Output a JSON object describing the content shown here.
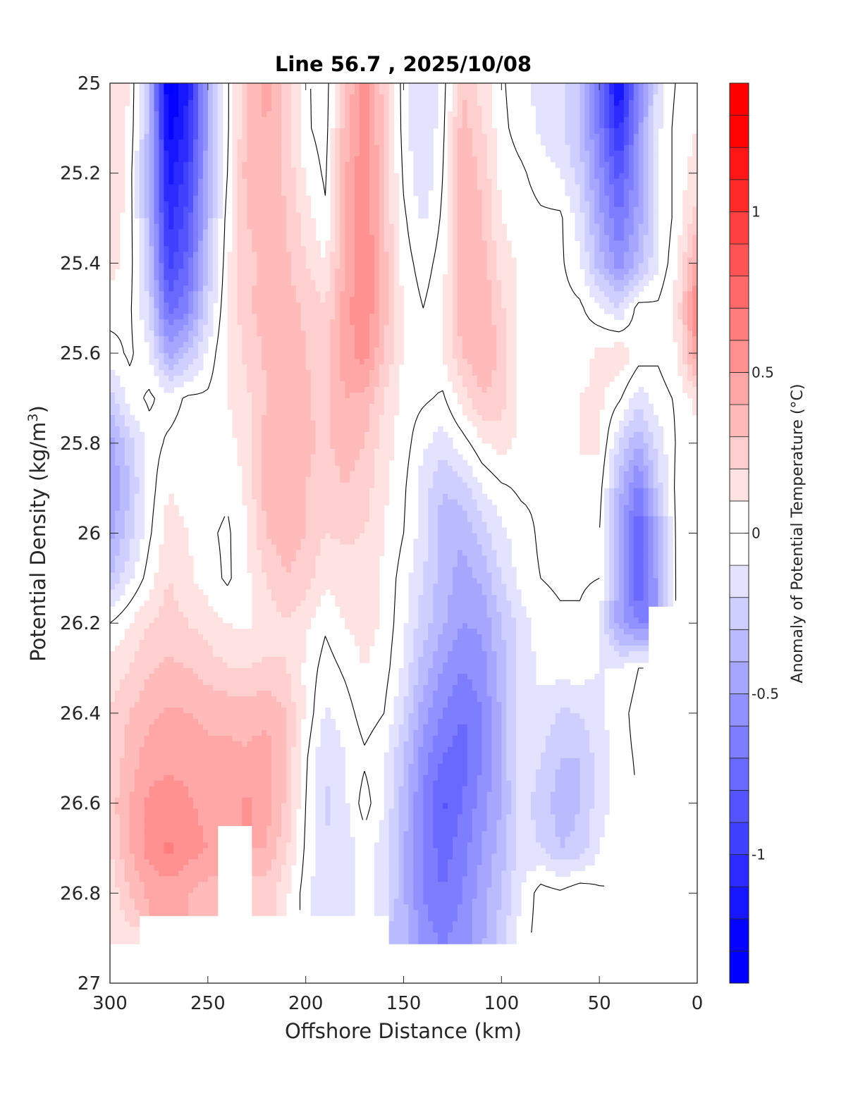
{
  "chart_data": {
    "type": "heatmap",
    "subtype": "filled-contour",
    "title": "Line 56.7 , 2025/10/08",
    "xlabel": "Offshore Distance (km)",
    "ylabel": "Potential Density (kg/m",
    "ylabel_superscript": "3",
    "ylabel_suffix": ")",
    "xlim": [
      300,
      0
    ],
    "ylim": [
      25,
      27
    ],
    "y_reversed": true,
    "x_reversed": true,
    "xticks": [
      300,
      250,
      200,
      150,
      100,
      50,
      0
    ],
    "yticks": [
      25,
      25.2,
      25.4,
      25.6,
      25.8,
      26,
      26.2,
      26.4,
      26.6,
      26.8,
      27
    ],
    "ytick_labels": [
      "25",
      "25.2",
      "25.4",
      "25.6",
      "25.8",
      "26",
      "26.2",
      "26.4",
      "26.6",
      "26.8",
      "27"
    ],
    "colorbar": {
      "label": "Anomaly of Potential Temperature (°C)",
      "range": [
        -1.4,
        1.4
      ],
      "step": 0.1,
      "ticks": [
        1,
        0.5,
        0,
        -0.5,
        -1
      ],
      "tick_labels": [
        "1",
        "0.5",
        "0",
        "-0.5",
        "-1"
      ],
      "negative_color": "#0000ff",
      "zero_color": "#ffffff",
      "positive_color": "#ff0000"
    },
    "contour_levels": [
      0
    ],
    "contour_color": "#000000",
    "x": [
      300,
      290,
      280,
      270,
      260,
      250,
      240,
      230,
      220,
      210,
      200,
      190,
      180,
      170,
      160,
      150,
      140,
      130,
      120,
      110,
      100,
      90,
      80,
      70,
      60,
      50,
      40,
      30,
      20,
      10,
      0
    ],
    "y": [
      25.0,
      25.1,
      25.2,
      25.3,
      25.4,
      25.5,
      25.6,
      25.7,
      25.8,
      25.9,
      26.0,
      26.1,
      26.2,
      26.3,
      26.4,
      26.5,
      26.6,
      26.7,
      26.8,
      26.9
    ],
    "z": [
      [
        0.15,
        0.1,
        -0.35,
        -1.35,
        -1.1,
        -0.45,
        -0.02,
        0.3,
        0.45,
        0.25,
        0.02,
        -0.06,
        0.3,
        0.55,
        0.25,
        -0.05,
        -0.2,
        -0.05,
        0.3,
        0.15,
        0.02,
        -0.08,
        -0.12,
        -0.15,
        -0.3,
        -0.7,
        -1.25,
        -0.6,
        -0.15,
        0.02,
        0.05
      ],
      [
        0.18,
        0.08,
        -0.35,
        -1.25,
        -1.05,
        -0.45,
        -0.02,
        0.32,
        0.4,
        0.25,
        0.02,
        -0.05,
        0.35,
        0.55,
        0.3,
        -0.05,
        -0.22,
        -0.03,
        0.35,
        0.22,
        0.03,
        -0.05,
        -0.12,
        -0.18,
        -0.3,
        -0.65,
        -1.05,
        -0.55,
        -0.12,
        0.05,
        0.1
      ],
      [
        0.2,
        0.05,
        -0.4,
        -1.15,
        -0.95,
        -0.4,
        0.0,
        0.35,
        0.38,
        0.28,
        0.08,
        -0.02,
        0.38,
        0.6,
        0.3,
        -0.02,
        -0.2,
        0.0,
        0.38,
        0.28,
        0.06,
        0.02,
        -0.05,
        -0.1,
        -0.25,
        -0.55,
        -0.85,
        -0.5,
        -0.12,
        0.05,
        0.15
      ],
      [
        0.18,
        0.05,
        -0.35,
        -1.05,
        -0.85,
        -0.35,
        0.05,
        0.3,
        0.35,
        0.3,
        0.15,
        0.02,
        0.4,
        0.6,
        0.3,
        0.02,
        -0.12,
        0.02,
        0.4,
        0.3,
        0.1,
        0.05,
        0.02,
        0.02,
        -0.15,
        -0.45,
        -0.7,
        -0.45,
        -0.12,
        0.05,
        0.25
      ],
      [
        0.15,
        0.05,
        -0.3,
        -0.95,
        -0.75,
        -0.3,
        0.08,
        0.28,
        0.32,
        0.32,
        0.2,
        0.1,
        0.4,
        0.62,
        0.35,
        0.05,
        -0.05,
        0.05,
        0.4,
        0.35,
        0.15,
        0.08,
        0.05,
        0.02,
        -0.08,
        -0.35,
        -0.55,
        -0.35,
        -0.1,
        0.1,
        0.45
      ],
      [
        0.05,
        0.02,
        -0.2,
        -0.75,
        -0.6,
        -0.2,
        0.1,
        0.28,
        0.35,
        0.35,
        0.28,
        0.2,
        0.45,
        0.6,
        0.35,
        0.08,
        0.0,
        0.08,
        0.38,
        0.4,
        0.22,
        0.08,
        0.08,
        0.04,
        0.02,
        -0.08,
        -0.2,
        0.05,
        0.02,
        0.15,
        0.65
      ],
      [
        -0.05,
        0.02,
        -0.08,
        -0.45,
        -0.3,
        -0.08,
        0.12,
        0.22,
        0.32,
        0.38,
        0.3,
        0.25,
        0.45,
        0.55,
        0.3,
        0.08,
        0.02,
        0.1,
        0.3,
        0.38,
        0.28,
        0.06,
        0.08,
        0.06,
        0.06,
        0.12,
        0.18,
        0.06,
        0.02,
        0.1,
        0.5
      ],
      [
        -0.25,
        -0.05,
        0.02,
        -0.05,
        0.02,
        0.02,
        0.1,
        0.18,
        0.3,
        0.35,
        0.32,
        0.25,
        0.4,
        0.38,
        0.2,
        0.05,
        0.02,
        -0.02,
        0.15,
        0.3,
        0.25,
        0.06,
        0.06,
        0.06,
        0.1,
        0.12,
        0.02,
        -0.15,
        -0.05,
        0.02,
        0.15
      ],
      [
        -0.45,
        -0.25,
        -0.05,
        0.02,
        0.05,
        0.02,
        0.06,
        0.15,
        0.35,
        0.35,
        0.32,
        0.28,
        0.35,
        0.3,
        0.15,
        0.05,
        -0.08,
        -0.15,
        -0.05,
        0.08,
        0.15,
        0.06,
        0.04,
        0.05,
        0.1,
        0.12,
        -0.2,
        -0.4,
        -0.15,
        0.02,
        0.05
      ],
      [
        -0.5,
        -0.3,
        -0.05,
        0.1,
        0.05,
        0.05,
        0.02,
        0.12,
        0.35,
        0.38,
        0.3,
        0.25,
        0.3,
        0.25,
        0.12,
        0.02,
        -0.15,
        -0.3,
        -0.25,
        -0.1,
        -0.02,
        0.02,
        0.02,
        0.05,
        0.1,
        0.05,
        -0.35,
        -0.65,
        -0.25,
        0.05,
        0.05
      ],
      [
        -0.45,
        -0.25,
        -0.02,
        0.15,
        0.1,
        0.02,
        -0.02,
        0.1,
        0.3,
        0.35,
        0.3,
        0.2,
        0.22,
        0.2,
        0.1,
        0.0,
        -0.15,
        -0.35,
        -0.38,
        -0.25,
        -0.12,
        -0.05,
        0.02,
        0.05,
        0.05,
        0.0,
        -0.45,
        -0.8,
        -0.4,
        0.05,
        0.1
      ],
      [
        -0.3,
        -0.12,
        0.05,
        0.2,
        0.12,
        0.05,
        -0.02,
        0.08,
        0.2,
        0.3,
        0.25,
        0.12,
        0.15,
        0.15,
        0.08,
        -0.05,
        -0.2,
        -0.35,
        -0.45,
        -0.38,
        -0.2,
        -0.05,
        0.0,
        0.02,
        0.02,
        0.0,
        -0.45,
        -0.85,
        -0.45,
        0.05,
        0.05
      ],
      [
        0.0,
        0.1,
        0.2,
        0.25,
        0.2,
        0.15,
        0.1,
        0.08,
        0.15,
        0.2,
        0.12,
        0.02,
        0.1,
        0.15,
        0.08,
        -0.08,
        -0.25,
        -0.38,
        -0.5,
        -0.48,
        -0.3,
        -0.15,
        -0.05,
        -0.02,
        -0.02,
        -0.1,
        -0.45,
        -0.6,
        null,
        null,
        null
      ],
      [
        0.15,
        0.2,
        0.28,
        0.32,
        0.3,
        0.25,
        0.2,
        0.2,
        0.22,
        0.2,
        0.08,
        -0.05,
        0.02,
        0.1,
        0.05,
        -0.12,
        -0.35,
        -0.5,
        -0.6,
        -0.55,
        -0.35,
        -0.15,
        -0.08,
        -0.05,
        -0.05,
        -0.1,
        -0.1,
        0.0,
        null,
        null,
        null
      ],
      [
        0.2,
        0.3,
        0.38,
        0.42,
        0.4,
        0.38,
        0.38,
        0.35,
        0.38,
        0.3,
        0.08,
        -0.12,
        -0.05,
        0.05,
        0.0,
        -0.2,
        -0.45,
        -0.6,
        -0.7,
        -0.6,
        -0.38,
        -0.12,
        -0.12,
        -0.22,
        -0.2,
        -0.12,
        -0.05,
        0.05,
        null,
        null,
        null
      ],
      [
        0.22,
        0.35,
        0.45,
        0.48,
        0.45,
        0.42,
        0.42,
        0.42,
        0.45,
        0.3,
        0.02,
        -0.2,
        -0.1,
        -0.02,
        -0.08,
        -0.3,
        -0.55,
        -0.7,
        -0.75,
        -0.6,
        -0.4,
        -0.12,
        -0.2,
        -0.3,
        -0.3,
        -0.15,
        -0.05,
        0.02,
        null,
        null,
        null
      ],
      [
        0.25,
        0.4,
        0.52,
        0.55,
        0.52,
        0.45,
        0.45,
        0.52,
        0.45,
        0.28,
        0.0,
        -0.22,
        -0.12,
        0.05,
        -0.1,
        -0.35,
        -0.62,
        -0.82,
        -0.7,
        -0.55,
        -0.4,
        -0.15,
        -0.25,
        -0.35,
        -0.3,
        -0.15,
        -0.05,
        null,
        null,
        null,
        null
      ],
      [
        0.2,
        0.4,
        0.55,
        0.62,
        0.55,
        0.5,
        null,
        null,
        0.4,
        0.22,
        -0.02,
        -0.2,
        -0.15,
        -0.05,
        -0.15,
        -0.38,
        -0.62,
        -0.75,
        -0.65,
        -0.5,
        -0.35,
        -0.15,
        -0.2,
        -0.3,
        -0.28,
        -0.1,
        -0.02,
        null,
        null,
        null,
        null
      ],
      [
        0.12,
        0.3,
        0.42,
        0.45,
        0.4,
        0.35,
        null,
        null,
        0.25,
        0.12,
        -0.05,
        -0.2,
        -0.15,
        -0.05,
        -0.15,
        -0.38,
        -0.6,
        -0.7,
        -0.6,
        -0.45,
        -0.3,
        -0.1,
        0.05,
        0.02,
        0.08,
        0.02,
        null,
        null,
        null,
        null,
        null
      ],
      [
        0.1,
        0.15,
        null,
        null,
        null,
        null,
        null,
        null,
        null,
        null,
        null,
        null,
        null,
        null,
        null,
        -0.35,
        -0.55,
        -0.62,
        -0.55,
        -0.42,
        -0.25,
        -0.05,
        0.05,
        0.08,
        0.02,
        null,
        null,
        null,
        null,
        null,
        null
      ]
    ]
  }
}
